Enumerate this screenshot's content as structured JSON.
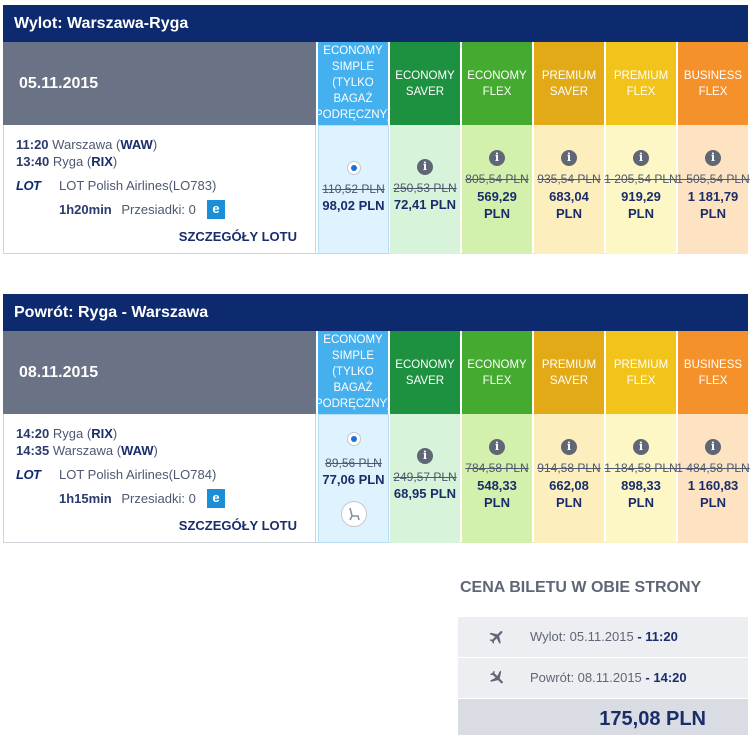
{
  "outbound": {
    "title": "Wylot: Warszawa-Ryga",
    "date": "05.11.2015",
    "dep_time": "11:20",
    "dep_city": "Warszawa",
    "dep_code": "WAW",
    "arr_time": "13:40",
    "arr_city": "Ryga",
    "arr_code": "RIX",
    "airline": "LOT Polish Airlines(LO783)",
    "duration": "1h20min",
    "stops_label": "Przesiadki: 0",
    "details": "SZCZEGÓŁY LOTU",
    "fares": [
      {
        "name": "ECONOMY SIMPLE (TYLKO BAGAŻ PODRĘCZNY)",
        "old": "110,52 PLN",
        "new": "98,02 PLN"
      },
      {
        "name": "ECONOMY SAVER",
        "old": "250,53 PLN",
        "new": "72,41 PLN"
      },
      {
        "name": "ECONOMY FLEX",
        "old": "805,54 PLN",
        "new": "569,29 PLN"
      },
      {
        "name": "PREMIUM SAVER",
        "old": "935,54 PLN",
        "new": "683,04 PLN"
      },
      {
        "name": "PREMIUM FLEX",
        "old": "1 205,54 PLN",
        "new": "919,29 PLN"
      },
      {
        "name": "BUSINESS FLEX",
        "old": "1 505,54 PLN",
        "new": "1 181,79 PLN"
      }
    ]
  },
  "return": {
    "title": "Powrót: Ryga - Warszawa",
    "date": "08.11.2015",
    "dep_time": "14:20",
    "dep_city": "Ryga",
    "dep_code": "RIX",
    "arr_time": "14:35",
    "arr_city": "Warszawa",
    "arr_code": "WAW",
    "airline": "LOT Polish Airlines(LO784)",
    "duration": "1h15min",
    "stops_label": "Przesiadki: 0",
    "details": "SZCZEGÓŁY LOTU",
    "fares": [
      {
        "name": "ECONOMY SIMPLE (TYLKO BAGAŻ PODRĘCZNY)",
        "old": "89,56 PLN",
        "new": "77,06 PLN"
      },
      {
        "name": "ECONOMY SAVER",
        "old": "249,57 PLN",
        "new": "68,95 PLN"
      },
      {
        "name": "ECONOMY FLEX",
        "old": "784,58 PLN",
        "new": "548,33 PLN"
      },
      {
        "name": "PREMIUM SAVER",
        "old": "914,58 PLN",
        "new": "662,08 PLN"
      },
      {
        "name": "PREMIUM FLEX",
        "old": "1 184,58 PLN",
        "new": "898,33 PLN"
      },
      {
        "name": "BUSINESS FLEX",
        "old": "1 484,58 PLN",
        "new": "1 160,83 PLN"
      }
    ]
  },
  "logo_text": "LOT",
  "e_badge": "e",
  "seat_badge": "4",
  "summary": {
    "title": "CENA BILETU W OBIE STRONY",
    "outbound_label": "Wylot: 05.11.2015",
    "outbound_time": "11:20",
    "return_label": "Powrót: 08.11.2015",
    "return_time": "14:20",
    "separator": " - ",
    "total": "175,08 PLN"
  },
  "colors": {
    "header_navy": "#0e2a6e",
    "date_gray": "#6a7285",
    "economy_simple": "#45b0ee",
    "economy_saver": "#1e9140",
    "economy_flex": "#44ab30",
    "premium_saver": "#e2aa17",
    "premium_flex": "#f2c31a",
    "business_flex": "#f5912a",
    "badge_blue": "#1a8fd6"
  },
  "icons": {
    "selected_fare": "radio-selected-icon",
    "fare_info": "info-icon",
    "seat": "seat-icon",
    "departure": "plane-departure-icon",
    "arrival": "plane-arrival-icon"
  }
}
